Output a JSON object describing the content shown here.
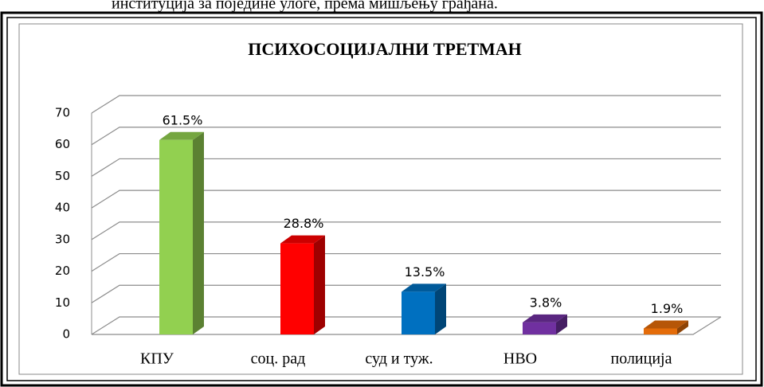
{
  "document": {
    "caption": "институција за поједине улоге, према мишљењу грађана."
  },
  "chart_data": {
    "type": "bar3d",
    "title": "ПСИХОСОЦИЈАЛНИ ТРЕТМАН",
    "categories": [
      "КПУ",
      "соц. рад",
      "суд и туж.",
      "НВО",
      "полиција"
    ],
    "values": [
      61.5,
      28.8,
      13.5,
      3.8,
      1.9
    ],
    "value_labels": [
      "61.5%",
      "28.8%",
      "13.5%",
      "3.8%",
      "1.9%"
    ],
    "colors": [
      "#92d050",
      "#ff0000",
      "#0070c0",
      "#7030a0",
      "#e46c0a"
    ],
    "ylim": [
      0,
      70
    ],
    "yticks": [
      0,
      10,
      20,
      30,
      40,
      50,
      60,
      70
    ],
    "grid": true
  }
}
